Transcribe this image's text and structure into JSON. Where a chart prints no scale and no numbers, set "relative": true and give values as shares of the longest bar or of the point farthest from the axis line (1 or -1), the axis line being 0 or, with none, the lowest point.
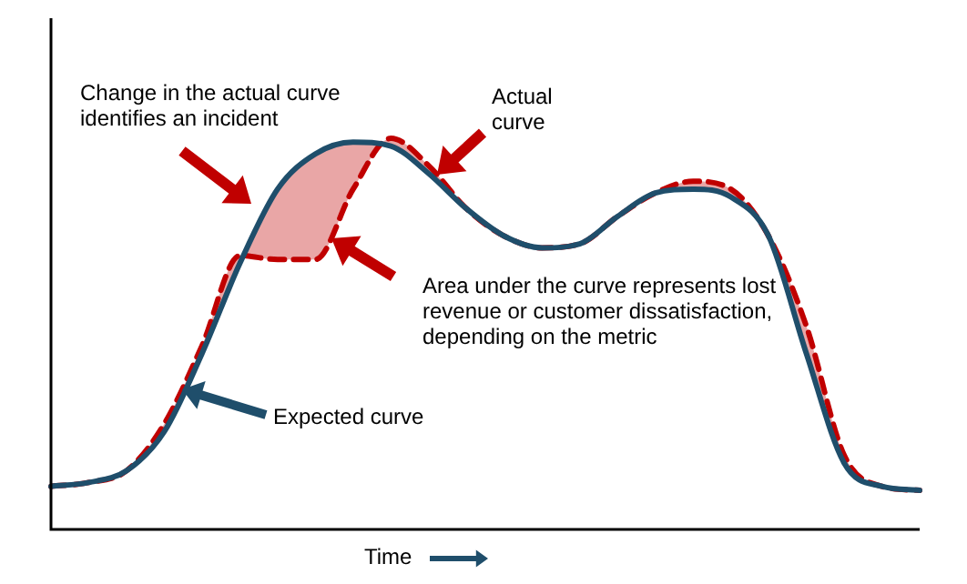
{
  "chart_data": {
    "type": "line",
    "relative": true,
    "xlabel": "Time",
    "legend": false,
    "tick_labels": false,
    "categories": [
      null,
      null,
      null,
      null,
      null,
      null,
      null,
      null,
      null,
      null,
      null,
      null,
      null,
      null,
      null,
      null,
      null,
      null,
      null,
      null,
      null,
      null,
      null,
      null
    ],
    "series": [
      {
        "color": "#1f4e6b",
        "line_style": "solid",
        "values": [
          0.11,
          0.12,
          0.15,
          0.25,
          0.45,
          0.68,
          0.87,
          0.96,
          0.99,
          0.98,
          0.91,
          0.82,
          0.75,
          0.72,
          0.73,
          0.8,
          0.86,
          0.87,
          0.85,
          0.75,
          0.45,
          0.17,
          0.11,
          0.1
        ]
      },
      {
        "color": "#c00000",
        "line_style": "dashed",
        "values": [
          0.11,
          0.12,
          0.15,
          0.27,
          0.47,
          0.7,
          0.69,
          0.69,
          0.87,
          1,
          0.93,
          0.82,
          0.75,
          0.72,
          0.73,
          0.8,
          0.86,
          0.89,
          0.87,
          0.75,
          0.52,
          0.19,
          0.11,
          0.1
        ]
      }
    ],
    "annotations": [
      "Change in the actual curve identifies an incident",
      "Actual curve",
      "Expected curve",
      "Area under the curve represents lost revenue or customer dissatisfaction, depending on the metric"
    ]
  }
}
